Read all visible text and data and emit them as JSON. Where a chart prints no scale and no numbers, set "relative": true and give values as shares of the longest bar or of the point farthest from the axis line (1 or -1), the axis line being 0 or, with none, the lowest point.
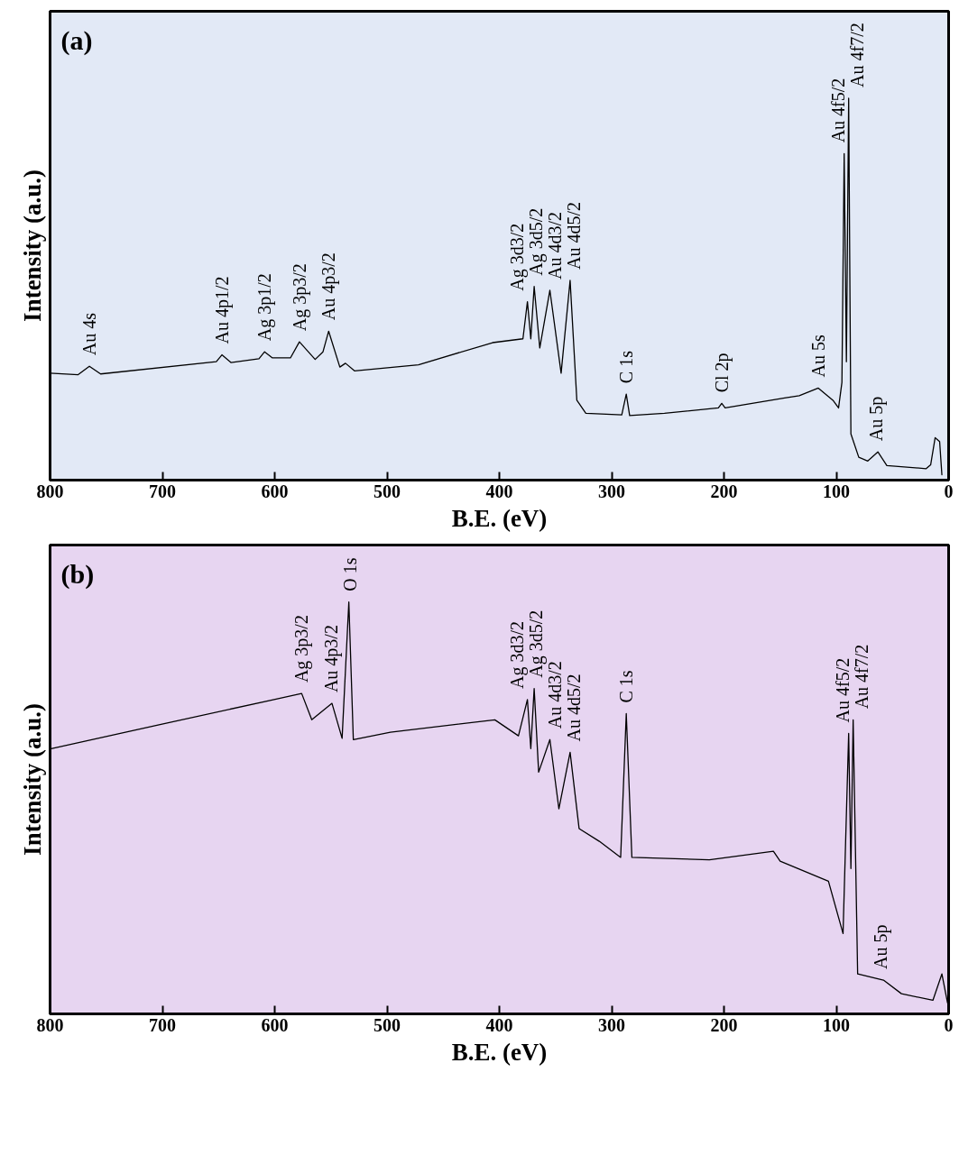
{
  "chart_data": [
    {
      "type": "line",
      "title": "(a)",
      "xlabel": "B.E. (eV)",
      "ylabel": "Intensity (a.u.)",
      "relative": true,
      "xlim": [
        800,
        0
      ],
      "xticks": [
        800,
        700,
        600,
        500,
        400,
        300,
        200,
        100,
        0
      ],
      "grid": false,
      "series": [
        {
          "color": "#000000",
          "x": [
            800,
            775,
            765,
            755,
            652,
            647,
            639,
            614,
            609,
            602,
            586,
            578,
            564,
            557,
            552,
            542,
            537,
            529,
            472,
            406,
            379,
            375,
            372,
            369,
            364,
            355,
            345,
            337,
            331,
            323,
            291,
            287,
            284,
            253,
            205,
            202,
            199,
            146,
            133,
            116,
            103,
            98,
            95,
            93,
            91,
            89,
            87,
            80,
            72,
            63,
            55,
            20,
            16,
            12,
            8,
            6
          ],
          "values": [
            0.28,
            0.276,
            0.298,
            0.278,
            0.31,
            0.328,
            0.308,
            0.318,
            0.336,
            0.32,
            0.32,
            0.362,
            0.316,
            0.336,
            0.39,
            0.296,
            0.306,
            0.286,
            0.302,
            0.36,
            0.37,
            0.467,
            0.37,
            0.507,
            0.346,
            0.497,
            0.28,
            0.523,
            0.209,
            0.175,
            0.171,
            0.225,
            0.169,
            0.175,
            0.189,
            0.201,
            0.189,
            0.215,
            0.221,
            0.241,
            0.209,
            0.189,
            0.256,
            0.855,
            0.31,
            1,
            0.121,
            0.06,
            0.05,
            0.074,
            0.038,
            0.03,
            0.04,
            0.111,
            0.101,
            0.014
          ]
        }
      ],
      "annotations": [
        {
          "text": "Au 4s",
          "x": 765,
          "y": 0.298
        },
        {
          "text": "Au 4p1/2",
          "x": 647,
          "y": 0.328
        },
        {
          "text": "Ag 3p1/2",
          "x": 609,
          "y": 0.336
        },
        {
          "text": "Ag 3p3/2",
          "x": 578,
          "y": 0.362
        },
        {
          "text": "Au 4p3/2",
          "x": 552,
          "y": 0.39
        },
        {
          "text": "Ag 3d3/2",
          "x": 375,
          "y": 0.467
        },
        {
          "text": "Ag 3d5/2",
          "x": 369,
          "y": 0.507
        },
        {
          "text": "Au 4d3/2",
          "x": 355,
          "y": 0.497
        },
        {
          "text": "Au 4d5/2",
          "x": 337,
          "y": 0.523
        },
        {
          "text": "C 1s",
          "x": 287,
          "y": 0.225
        },
        {
          "text": "Cl 2p",
          "x": 202,
          "y": 0.201
        },
        {
          "text": "Au 5s",
          "x": 116,
          "y": 0.241
        },
        {
          "text": "Au 4f5/2",
          "x": 93,
          "y": 0.855
        },
        {
          "text": "Au 4f7/2",
          "x": 89,
          "y": 1
        },
        {
          "text": "Au 5p",
          "x": 63,
          "y": 0.074
        }
      ]
    },
    {
      "type": "line",
      "title": "(b)",
      "xlabel": "B.E. (eV)",
      "ylabel": "Intensity (a.u.)",
      "relative": true,
      "xlim": [
        800,
        0
      ],
      "xticks": [
        800,
        700,
        600,
        500,
        400,
        300,
        200,
        100,
        0
      ],
      "grid": false,
      "series": [
        {
          "color": "#000000",
          "x": [
            799,
            703,
            606,
            576,
            567,
            549,
            540,
            534,
            530,
            497,
            404,
            383,
            375,
            372,
            369,
            365,
            355,
            347,
            337,
            329,
            311,
            292,
            287,
            282,
            213,
            156,
            150,
            107,
            94,
            89,
            87,
            85,
            81,
            58,
            42,
            14,
            6,
            1
          ],
          "values": [
            0.644,
            0.702,
            0.76,
            0.778,
            0.714,
            0.754,
            0.669,
            1,
            0.666,
            0.684,
            0.714,
            0.675,
            0.763,
            0.644,
            0.79,
            0.587,
            0.666,
            0.498,
            0.635,
            0.45,
            0.419,
            0.38,
            0.729,
            0.38,
            0.374,
            0.395,
            0.371,
            0.322,
            0.195,
            0.681,
            0.353,
            0.714,
            0.097,
            0.082,
            0.049,
            0.033,
            0.097,
            0.027
          ]
        }
      ],
      "annotations": [
        {
          "text": "Ag 3p3/2",
          "x": 576,
          "y": 0.778
        },
        {
          "text": "Au 4p3/2",
          "x": 549,
          "y": 0.754
        },
        {
          "text": "O 1s",
          "x": 534,
          "y": 1
        },
        {
          "text": "Ag 3d3/2",
          "x": 375,
          "y": 0.763
        },
        {
          "text": "Ag 3d5/2",
          "x": 369,
          "y": 0.79
        },
        {
          "text": "Au 4d3/2",
          "x": 355,
          "y": 0.666
        },
        {
          "text": "Au 4d5/2",
          "x": 337,
          "y": 0.635
        },
        {
          "text": "C 1s",
          "x": 287,
          "y": 0.729
        },
        {
          "text": "Au 4f5/2",
          "x": 89,
          "y": 0.681
        },
        {
          "text": "Au 4f7/2",
          "x": 85,
          "y": 0.714
        },
        {
          "text": "Au 5p",
          "x": 58,
          "y": 0.082
        }
      ]
    }
  ]
}
